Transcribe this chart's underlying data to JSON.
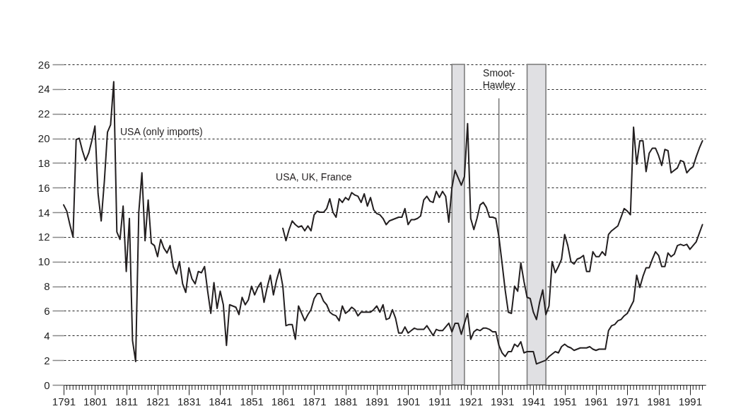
{
  "chart_data": {
    "type": "line",
    "x": [
      1791,
      1792,
      1793,
      1794,
      1795,
      1796,
      1797,
      1798,
      1799,
      1800,
      1801,
      1802,
      1803,
      1804,
      1805,
      1806,
      1807,
      1808,
      1809,
      1810,
      1811,
      1812,
      1813,
      1814,
      1815,
      1816,
      1817,
      1818,
      1819,
      1820,
      1821,
      1822,
      1823,
      1824,
      1825,
      1826,
      1827,
      1828,
      1829,
      1830,
      1831,
      1832,
      1833,
      1834,
      1835,
      1836,
      1837,
      1838,
      1839,
      1840,
      1841,
      1842,
      1843,
      1844,
      1845,
      1846,
      1847,
      1848,
      1849,
      1850,
      1851,
      1852,
      1853,
      1854,
      1855,
      1856,
      1857,
      1858,
      1859,
      1860,
      1861,
      1862,
      1863,
      1864,
      1865,
      1866,
      1867,
      1868,
      1869,
      1870,
      1871,
      1872,
      1873,
      1874,
      1875,
      1876,
      1877,
      1878,
      1879,
      1880,
      1881,
      1882,
      1883,
      1884,
      1885,
      1886,
      1887,
      1888,
      1889,
      1890,
      1891,
      1892,
      1893,
      1894,
      1895,
      1896,
      1897,
      1898,
      1899,
      1900,
      1901,
      1902,
      1903,
      1904,
      1905,
      1906,
      1907,
      1908,
      1909,
      1910,
      1911,
      1912,
      1913,
      1914,
      1915,
      1916,
      1917,
      1918,
      1919,
      1920,
      1921,
      1922,
      1923,
      1924,
      1925,
      1926,
      1927,
      1928,
      1929,
      1930,
      1931,
      1932,
      1933,
      1934,
      1935,
      1936,
      1937,
      1938,
      1939,
      1940,
      1941,
      1942,
      1943,
      1944,
      1945,
      1946,
      1947,
      1948,
      1949,
      1950,
      1951,
      1952,
      1953,
      1954,
      1955,
      1956,
      1957,
      1958,
      1959,
      1960,
      1961,
      1962,
      1963,
      1964,
      1965,
      1966,
      1967,
      1968,
      1969,
      1970,
      1971,
      1972,
      1973,
      1974,
      1975,
      1976,
      1977,
      1978,
      1979,
      1980,
      1981,
      1982,
      1983,
      1984,
      1985,
      1986,
      1987,
      1988,
      1989,
      1990,
      1991,
      1992,
      1993,
      1994,
      1995
    ],
    "series": [
      {
        "name": "USA (only imports)",
        "color": "#231f20",
        "values": [
          14.6,
          14.1,
          13.0,
          12.0,
          19.9,
          20.0,
          19.0,
          18.2,
          18.8,
          19.8,
          21.0,
          15.5,
          13.3,
          16.5,
          20.5,
          21.1,
          24.6,
          12.4,
          11.8,
          14.5,
          9.2,
          13.5,
          3.6,
          1.9,
          14.0,
          17.2,
          11.7,
          15.0,
          11.5,
          11.3,
          10.4,
          11.8,
          11.1,
          10.7,
          11.3,
          9.6,
          9.0,
          10.0,
          8.2,
          7.5,
          9.5,
          8.6,
          8.2,
          9.2,
          9.1,
          9.6,
          7.6,
          5.8,
          8.3,
          6.2,
          7.6,
          6.5,
          3.2,
          6.5,
          6.4,
          6.3,
          5.7,
          7.1,
          6.5,
          6.9,
          8.0,
          7.3,
          7.9,
          8.3,
          6.7,
          7.9,
          8.9,
          7.3,
          8.5,
          9.4,
          8.0,
          4.8,
          4.9,
          4.9,
          3.7,
          6.4,
          5.8,
          5.2,
          5.7,
          6.1,
          7.0,
          7.4,
          7.4,
          6.8,
          6.5,
          5.9,
          5.7,
          5.6,
          5.2,
          6.4,
          5.8,
          6.0,
          6.3,
          6.1,
          5.6,
          5.9,
          5.9,
          5.9,
          5.9,
          6.1,
          6.4,
          5.9,
          6.5,
          5.3,
          5.4,
          6.1,
          5.4,
          4.2,
          4.2,
          4.7,
          4.2,
          4.4,
          4.6,
          4.5,
          4.5,
          4.5,
          4.8,
          4.4,
          4.0,
          4.5,
          4.4,
          4.4,
          4.7,
          5.0,
          4.3,
          5.0,
          5.0,
          4.1,
          5.0,
          5.8,
          3.7,
          4.3,
          4.5,
          4.4,
          4.6,
          4.6,
          4.5,
          4.3,
          4.3,
          3.2,
          2.6,
          2.3,
          2.7,
          2.7,
          3.3,
          3.1,
          3.5,
          2.6,
          2.7,
          2.7,
          2.7,
          1.7,
          1.8,
          1.9,
          2.0,
          2.3,
          2.5,
          2.7,
          2.6,
          3.1,
          3.3,
          3.1,
          3.0,
          2.8,
          2.9,
          3.0,
          3.0,
          3.0,
          3.1,
          2.9,
          2.8,
          2.9,
          2.9,
          2.9,
          4.4,
          4.8,
          4.9,
          5.2,
          5.3,
          5.6,
          5.8,
          6.3,
          6.8,
          8.9,
          7.9,
          8.8,
          9.5,
          9.5,
          10.2,
          10.8,
          10.5,
          9.6,
          9.6,
          10.7,
          10.4,
          10.6,
          11.3,
          11.4,
          11.3,
          11.4,
          11.0,
          11.3,
          11.6,
          12.3,
          13.0
        ]
      },
      {
        "name": "USA, UK, France",
        "color": "#231f20",
        "values": [
          null,
          null,
          null,
          null,
          null,
          null,
          null,
          null,
          null,
          null,
          null,
          null,
          null,
          null,
          null,
          null,
          null,
          null,
          null,
          null,
          null,
          null,
          null,
          null,
          null,
          null,
          null,
          null,
          null,
          null,
          null,
          null,
          null,
          null,
          null,
          null,
          null,
          null,
          null,
          null,
          null,
          null,
          null,
          null,
          null,
          null,
          null,
          null,
          null,
          null,
          null,
          null,
          null,
          null,
          null,
          null,
          null,
          null,
          null,
          null,
          null,
          null,
          null,
          null,
          null,
          null,
          null,
          null,
          null,
          null,
          12.7,
          11.7,
          12.6,
          13.3,
          13.0,
          12.8,
          12.9,
          12.5,
          12.9,
          12.5,
          13.8,
          14.1,
          14.0,
          14.0,
          14.3,
          15.1,
          14.0,
          13.6,
          15.1,
          14.8,
          15.2,
          15.0,
          15.6,
          15.4,
          15.3,
          14.8,
          15.5,
          14.5,
          15.2,
          14.2,
          13.9,
          13.8,
          13.5,
          13.0,
          13.3,
          13.4,
          13.5,
          13.6,
          13.6,
          14.3,
          13.0,
          13.4,
          13.4,
          13.5,
          13.7,
          15.0,
          15.3,
          14.9,
          14.8,
          15.7,
          15.2,
          15.7,
          15.3,
          13.2,
          16.0,
          17.4,
          16.8,
          16.2,
          16.9,
          21.2,
          13.5,
          12.6,
          13.5,
          14.6,
          14.8,
          14.4,
          13.6,
          13.6,
          13.5,
          12.0,
          9.9,
          7.7,
          5.9,
          5.8,
          8.0,
          7.6,
          9.9,
          8.4,
          7.1,
          7.0,
          5.9,
          5.3,
          6.7,
          7.7,
          5.7,
          6.4,
          10.0,
          9.1,
          9.6,
          10.2,
          12.2,
          11.3,
          10.0,
          9.8,
          10.2,
          10.3,
          10.5,
          9.2,
          9.2,
          10.8,
          10.4,
          10.4,
          10.8,
          10.5,
          12.2,
          12.5,
          12.7,
          12.9,
          13.6,
          14.3,
          14.1,
          13.8,
          20.9,
          17.9,
          19.8,
          19.8,
          17.3,
          18.8,
          19.2,
          19.2,
          18.6,
          17.8,
          19.1,
          19.0,
          17.2,
          17.4,
          17.6,
          18.2,
          18.1,
          17.2,
          17.5,
          17.7,
          18.5,
          19.2,
          19.8
        ]
      }
    ],
    "xlim": [
      1791,
      1996
    ],
    "ylim": [
      0,
      26
    ],
    "yticks": [
      0,
      2,
      4,
      6,
      8,
      10,
      12,
      14,
      16,
      18,
      20,
      22,
      24,
      26
    ],
    "xticks": [
      1791,
      {
        "value": 1792,
        "label": null
      },
      {
        "value": 1793,
        "label": null
      },
      {
        "value": 1794,
        "label": null
      },
      {
        "value": 1795,
        "label": null
      },
      {
        "value": 1796,
        "label": null
      },
      {
        "value": 1797,
        "label": null
      },
      {
        "value": 1798,
        "label": null
      },
      {
        "value": 1799,
        "label": null
      },
      {
        "value": 1800,
        "label": null
      },
      1801,
      {
        "value": 1802,
        "label": null
      },
      {
        "value": 1803,
        "label": null
      },
      {
        "value": 1804,
        "label": null
      },
      {
        "value": 1805,
        "label": null
      },
      {
        "value": 1806,
        "label": null
      },
      {
        "value": 1807,
        "label": null
      },
      {
        "value": 1808,
        "label": null
      },
      {
        "value": 1809,
        "label": null
      },
      {
        "value": 1810,
        "label": null
      },
      1811,
      {
        "value": 1812,
        "label": null
      },
      {
        "value": 1813,
        "label": null
      },
      {
        "value": 1814,
        "label": null
      },
      {
        "value": 1815,
        "label": null
      },
      {
        "value": 1816,
        "label": null
      },
      {
        "value": 1817,
        "label": null
      },
      {
        "value": 1818,
        "label": null
      },
      {
        "value": 1819,
        "label": null
      },
      {
        "value": 1820,
        "label": null
      },
      1821,
      {
        "value": 1822,
        "label": null
      },
      {
        "value": 1823,
        "label": null
      },
      {
        "value": 1824,
        "label": null
      },
      {
        "value": 1825,
        "label": null
      },
      {
        "value": 1826,
        "label": null
      },
      {
        "value": 1827,
        "label": null
      },
      {
        "value": 1828,
        "label": null
      },
      {
        "value": 1829,
        "label": null
      },
      {
        "value": 1830,
        "label": null
      },
      1831,
      {
        "value": 1832,
        "label": null
      },
      {
        "value": 1833,
        "label": null
      },
      {
        "value": 1834,
        "label": null
      },
      {
        "value": 1835,
        "label": null
      },
      {
        "value": 1836,
        "label": null
      },
      {
        "value": 1837,
        "label": null
      },
      {
        "value": 1838,
        "label": null
      },
      {
        "value": 1839,
        "label": null
      },
      {
        "value": 1840,
        "label": null
      },
      1841,
      {
        "value": 1842,
        "label": null
      },
      {
        "value": 1843,
        "label": null
      },
      {
        "value": 1844,
        "label": null
      },
      {
        "value": 1845,
        "label": null
      },
      {
        "value": 1846,
        "label": null
      },
      {
        "value": 1847,
        "label": null
      },
      {
        "value": 1848,
        "label": null
      },
      {
        "value": 1849,
        "label": null
      },
      {
        "value": 1850,
        "label": null
      },
      1851,
      {
        "value": 1852,
        "label": null
      },
      {
        "value": 1853,
        "label": null
      },
      {
        "value": 1854,
        "label": null
      },
      {
        "value": 1855,
        "label": null
      },
      {
        "value": 1856,
        "label": null
      },
      {
        "value": 1857,
        "label": null
      },
      {
        "value": 1858,
        "label": null
      },
      {
        "value": 1859,
        "label": null
      },
      {
        "value": 1860,
        "label": null
      },
      1861,
      {
        "value": 1862,
        "label": null
      },
      {
        "value": 1863,
        "label": null
      },
      {
        "value": 1864,
        "label": null
      },
      {
        "value": 1865,
        "label": null
      },
      {
        "value": 1866,
        "label": null
      },
      {
        "value": 1867,
        "label": null
      },
      {
        "value": 1868,
        "label": null
      },
      {
        "value": 1869,
        "label": null
      },
      {
        "value": 1870,
        "label": null
      },
      1871,
      {
        "value": 1872,
        "label": null
      },
      {
        "value": 1873,
        "label": null
      },
      {
        "value": 1874,
        "label": null
      },
      {
        "value": 1875,
        "label": null
      },
      {
        "value": 1876,
        "label": null
      },
      {
        "value": 1877,
        "label": null
      },
      {
        "value": 1878,
        "label": null
      },
      {
        "value": 1879,
        "label": null
      },
      {
        "value": 1880,
        "label": null
      },
      1881,
      {
        "value": 1882,
        "label": null
      },
      {
        "value": 1883,
        "label": null
      },
      {
        "value": 1884,
        "label": null
      },
      {
        "value": 1885,
        "label": null
      },
      {
        "value": 1886,
        "label": null
      },
      {
        "value": 1887,
        "label": null
      },
      {
        "value": 1888,
        "label": null
      },
      {
        "value": 1889,
        "label": null
      },
      {
        "value": 1890,
        "label": null
      },
      1891,
      {
        "value": 1892,
        "label": null
      },
      {
        "value": 1893,
        "label": null
      },
      {
        "value": 1894,
        "label": null
      },
      {
        "value": 1895,
        "label": null
      },
      {
        "value": 1896,
        "label": null
      },
      {
        "value": 1897,
        "label": null
      },
      {
        "value": 1898,
        "label": null
      },
      {
        "value": 1899,
        "label": null
      },
      {
        "value": 1900,
        "label": null
      },
      1901,
      {
        "value": 1902,
        "label": null
      },
      {
        "value": 1903,
        "label": null
      },
      {
        "value": 1904,
        "label": null
      },
      {
        "value": 1905,
        "label": null
      },
      {
        "value": 1906,
        "label": null
      },
      {
        "value": 1907,
        "label": null
      },
      {
        "value": 1908,
        "label": null
      },
      {
        "value": 1909,
        "label": null
      },
      {
        "value": 1910,
        "label": null
      },
      1911,
      {
        "value": 1912,
        "label": null
      },
      {
        "value": 1913,
        "label": null
      },
      {
        "value": 1914,
        "label": null
      },
      {
        "value": 1915,
        "label": null
      },
      {
        "value": 1916,
        "label": null
      },
      {
        "value": 1917,
        "label": null
      },
      {
        "value": 1918,
        "label": null
      },
      {
        "value": 1919,
        "label": null
      },
      {
        "value": 1920,
        "label": null
      },
      1921,
      {
        "value": 1922,
        "label": null
      },
      {
        "value": 1923,
        "label": null
      },
      {
        "value": 1924,
        "label": null
      },
      {
        "value": 1925,
        "label": null
      },
      {
        "value": 1926,
        "label": null
      },
      {
        "value": 1927,
        "label": null
      },
      {
        "value": 1928,
        "label": null
      },
      {
        "value": 1929,
        "label": null
      },
      {
        "value": 1930,
        "label": null
      },
      1931,
      {
        "value": 1932,
        "label": null
      },
      {
        "value": 1933,
        "label": null
      },
      {
        "value": 1934,
        "label": null
      },
      {
        "value": 1935,
        "label": null
      },
      {
        "value": 1936,
        "label": null
      },
      {
        "value": 1937,
        "label": null
      },
      {
        "value": 1938,
        "label": null
      },
      {
        "value": 1939,
        "label": null
      },
      {
        "value": 1940,
        "label": null
      },
      1941,
      {
        "value": 1942,
        "label": null
      },
      {
        "value": 1943,
        "label": null
      },
      {
        "value": 1944,
        "label": null
      },
      {
        "value": 1945,
        "label": null
      },
      {
        "value": 1946,
        "label": null
      },
      {
        "value": 1947,
        "label": null
      },
      {
        "value": 1948,
        "label": null
      },
      {
        "value": 1949,
        "label": null
      },
      {
        "value": 1950,
        "label": null
      },
      1951,
      {
        "value": 1952,
        "label": null
      },
      {
        "value": 1953,
        "label": null
      },
      {
        "value": 1954,
        "label": null
      },
      {
        "value": 1955,
        "label": null
      },
      {
        "value": 1956,
        "label": null
      },
      {
        "value": 1957,
        "label": null
      },
      {
        "value": 1958,
        "label": null
      },
      {
        "value": 1959,
        "label": null
      },
      {
        "value": 1960,
        "label": null
      },
      1961,
      {
        "value": 1962,
        "label": null
      },
      {
        "value": 1963,
        "label": null
      },
      {
        "value": 1964,
        "label": null
      },
      {
        "value": 1965,
        "label": null
      },
      {
        "value": 1966,
        "label": null
      },
      {
        "value": 1967,
        "label": null
      },
      {
        "value": 1968,
        "label": null
      },
      {
        "value": 1969,
        "label": null
      },
      {
        "value": 1970,
        "label": null
      },
      1971,
      {
        "value": 1972,
        "label": null
      },
      {
        "value": 1973,
        "label": null
      },
      {
        "value": 1974,
        "label": null
      },
      {
        "value": 1975,
        "label": null
      },
      {
        "value": 1976,
        "label": null
      },
      {
        "value": 1977,
        "label": null
      },
      {
        "value": 1978,
        "label": null
      },
      {
        "value": 1979,
        "label": null
      },
      {
        "value": 1980,
        "label": null
      },
      1981,
      {
        "value": 1982,
        "label": null
      },
      {
        "value": 1983,
        "label": null
      },
      {
        "value": 1984,
        "label": null
      },
      {
        "value": 1985,
        "label": null
      },
      {
        "value": 1986,
        "label": null
      },
      {
        "value": 1987,
        "label": null
      },
      {
        "value": 1988,
        "label": null
      },
      {
        "value": 1989,
        "label": null
      },
      {
        "value": 1990,
        "label": null
      },
      1991,
      {
        "value": 1992,
        "label": null
      },
      {
        "value": 1993,
        "label": null
      },
      {
        "value": 1994,
        "label": null
      },
      {
        "value": 1995,
        "label": null
      }
    ],
    "grid": "y",
    "bands": [
      {
        "axis": "x",
        "from": 1915,
        "to": 1919,
        "color": "#e0e0e3"
      },
      {
        "axis": "x",
        "from": 1939,
        "to": 1945,
        "color": "#e0e0e3"
      }
    ],
    "ref_lines": [
      {
        "axis": "x",
        "value": 1930,
        "label": "Smoot-Hawley",
        "color": "#777777"
      }
    ]
  }
}
